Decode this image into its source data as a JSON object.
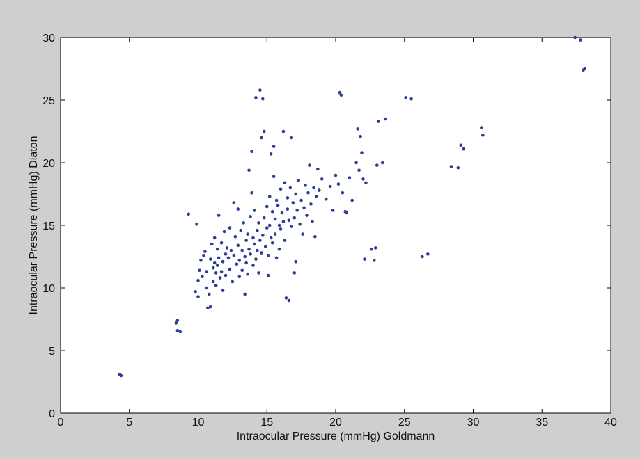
{
  "chart_data": {
    "type": "scatter",
    "title": "",
    "xlabel": "Intraocular Pressure (mmHg) Goldmann",
    "ylabel": "Intraocular Pressure (mmHg) Diaton",
    "xlim": [
      0,
      40
    ],
    "ylim": [
      0,
      30
    ],
    "xticks": [
      0,
      5,
      10,
      15,
      20,
      25,
      30,
      35,
      40
    ],
    "yticks": [
      0,
      5,
      10,
      15,
      20,
      25,
      30
    ],
    "grid": false,
    "legend": "none",
    "colors": {
      "figure_background": "#cfcfcf",
      "axes_background": "#ffffff",
      "marker": "#2b3f9a"
    },
    "series": [
      {
        "points": [
          [
            4.3,
            3.1
          ],
          [
            4.4,
            3.0
          ],
          [
            8.4,
            7.2
          ],
          [
            8.5,
            7.4
          ],
          [
            8.5,
            6.6
          ],
          [
            8.7,
            6.5
          ],
          [
            9.3,
            15.9
          ],
          [
            9.8,
            9.7
          ],
          [
            9.9,
            15.1
          ],
          [
            10.0,
            9.3
          ],
          [
            10.1,
            11.4
          ],
          [
            10.0,
            10.6
          ],
          [
            10.2,
            12.2
          ],
          [
            10.3,
            10.9
          ],
          [
            10.4,
            12.6
          ],
          [
            10.5,
            12.9
          ],
          [
            10.6,
            11.3
          ],
          [
            10.6,
            10.0
          ],
          [
            10.7,
            8.4
          ],
          [
            10.8,
            9.5
          ],
          [
            10.9,
            12.3
          ],
          [
            10.9,
            8.5
          ],
          [
            11.0,
            13.5
          ],
          [
            11.1,
            11.6
          ],
          [
            11.1,
            10.5
          ],
          [
            11.2,
            14.0
          ],
          [
            11.2,
            12.0
          ],
          [
            11.3,
            11.2
          ],
          [
            11.3,
            10.2
          ],
          [
            11.4,
            13.1
          ],
          [
            11.4,
            11.8
          ],
          [
            11.5,
            15.8
          ],
          [
            11.5,
            12.4
          ],
          [
            11.6,
            10.8
          ],
          [
            11.7,
            13.6
          ],
          [
            11.7,
            11.3
          ],
          [
            11.8,
            12.1
          ],
          [
            11.8,
            9.8
          ],
          [
            11.9,
            14.5
          ],
          [
            12.0,
            12.7
          ],
          [
            12.0,
            11.0
          ],
          [
            12.1,
            13.2
          ],
          [
            12.2,
            12.4
          ],
          [
            12.3,
            14.8
          ],
          [
            12.3,
            11.5
          ],
          [
            12.4,
            13.0
          ],
          [
            12.5,
            10.5
          ],
          [
            12.6,
            16.8
          ],
          [
            12.6,
            12.6
          ],
          [
            12.7,
            14.1
          ],
          [
            12.8,
            11.9
          ],
          [
            12.9,
            16.3
          ],
          [
            12.9,
            13.4
          ],
          [
            13.0,
            12.2
          ],
          [
            13.0,
            10.9
          ],
          [
            13.1,
            14.6
          ],
          [
            13.2,
            13.0
          ],
          [
            13.2,
            11.4
          ],
          [
            13.3,
            15.2
          ],
          [
            13.4,
            12.5
          ],
          [
            13.4,
            9.5
          ],
          [
            13.5,
            13.8
          ],
          [
            13.5,
            12.0
          ],
          [
            13.6,
            14.3
          ],
          [
            13.6,
            11.1
          ],
          [
            13.7,
            19.4
          ],
          [
            13.7,
            13.1
          ],
          [
            13.8,
            15.7
          ],
          [
            13.8,
            12.7
          ],
          [
            13.9,
            20.9
          ],
          [
            13.9,
            17.6
          ],
          [
            14.0,
            14.0
          ],
          [
            14.0,
            11.8
          ],
          [
            14.1,
            13.5
          ],
          [
            14.1,
            16.2
          ],
          [
            14.2,
            12.3
          ],
          [
            14.2,
            25.2
          ],
          [
            14.3,
            14.6
          ],
          [
            14.3,
            13.0
          ],
          [
            14.4,
            15.2
          ],
          [
            14.4,
            11.2
          ],
          [
            14.5,
            25.8
          ],
          [
            14.5,
            13.8
          ],
          [
            14.6,
            22.0
          ],
          [
            14.6,
            12.8
          ],
          [
            14.7,
            25.1
          ],
          [
            14.7,
            14.2
          ],
          [
            14.8,
            22.5
          ],
          [
            14.8,
            15.6
          ],
          [
            14.9,
            13.3
          ],
          [
            15.0,
            16.5
          ],
          [
            15.0,
            14.8
          ],
          [
            15.1,
            12.6
          ],
          [
            15.1,
            11.0
          ],
          [
            15.2,
            17.3
          ],
          [
            15.2,
            15.0
          ],
          [
            15.3,
            14.0
          ],
          [
            15.3,
            20.7
          ],
          [
            15.4,
            16.1
          ],
          [
            15.4,
            13.6
          ],
          [
            15.5,
            21.3
          ],
          [
            15.5,
            18.9
          ],
          [
            15.6,
            15.5
          ],
          [
            15.6,
            14.3
          ],
          [
            15.7,
            17.0
          ],
          [
            15.7,
            12.4
          ],
          [
            15.8,
            16.6
          ],
          [
            15.9,
            15.0
          ],
          [
            15.9,
            13.1
          ],
          [
            16.0,
            17.9
          ],
          [
            16.0,
            14.7
          ],
          [
            16.1,
            16.0
          ],
          [
            16.2,
            22.5
          ],
          [
            16.2,
            15.3
          ],
          [
            16.3,
            18.4
          ],
          [
            16.3,
            13.8
          ],
          [
            16.4,
            9.2
          ],
          [
            16.5,
            17.2
          ],
          [
            16.5,
            16.3
          ],
          [
            16.6,
            9.0
          ],
          [
            16.6,
            15.4
          ],
          [
            16.7,
            18.0
          ],
          [
            16.8,
            14.9
          ],
          [
            16.8,
            22.0
          ],
          [
            16.9,
            16.8
          ],
          [
            17.0,
            15.6
          ],
          [
            17.0,
            11.2
          ],
          [
            17.1,
            17.5
          ],
          [
            17.1,
            12.1
          ],
          [
            17.2,
            16.2
          ],
          [
            17.3,
            18.6
          ],
          [
            17.4,
            15.1
          ],
          [
            17.5,
            17.0
          ],
          [
            17.6,
            14.3
          ],
          [
            17.7,
            16.4
          ],
          [
            17.8,
            18.2
          ],
          [
            17.9,
            15.8
          ],
          [
            18.0,
            17.6
          ],
          [
            18.1,
            19.8
          ],
          [
            18.2,
            16.7
          ],
          [
            18.3,
            15.3
          ],
          [
            18.4,
            18.0
          ],
          [
            18.5,
            14.1
          ],
          [
            18.6,
            17.3
          ],
          [
            18.7,
            19.5
          ],
          [
            18.8,
            17.8
          ],
          [
            19.0,
            18.7
          ],
          [
            19.3,
            17.1
          ],
          [
            19.6,
            18.1
          ],
          [
            19.8,
            16.2
          ],
          [
            20.0,
            19.0
          ],
          [
            20.2,
            18.3
          ],
          [
            20.3,
            25.6
          ],
          [
            20.4,
            25.4
          ],
          [
            20.5,
            17.6
          ],
          [
            20.7,
            16.1
          ],
          [
            20.8,
            16.0
          ],
          [
            21.0,
            18.8
          ],
          [
            21.2,
            17.0
          ],
          [
            21.5,
            20.0
          ],
          [
            21.6,
            22.7
          ],
          [
            21.7,
            19.4
          ],
          [
            21.8,
            22.1
          ],
          [
            21.9,
            20.8
          ],
          [
            22.0,
            18.7
          ],
          [
            22.1,
            12.3
          ],
          [
            22.2,
            18.4
          ],
          [
            22.6,
            13.1
          ],
          [
            22.8,
            12.2
          ],
          [
            22.9,
            13.2
          ],
          [
            23.0,
            19.8
          ],
          [
            23.1,
            23.3
          ],
          [
            23.4,
            20.0
          ],
          [
            23.6,
            23.5
          ],
          [
            25.1,
            25.2
          ],
          [
            25.5,
            25.1
          ],
          [
            26.3,
            12.5
          ],
          [
            26.7,
            12.7
          ],
          [
            28.4,
            19.7
          ],
          [
            28.9,
            19.6
          ],
          [
            29.1,
            21.4
          ],
          [
            29.3,
            21.1
          ],
          [
            30.6,
            22.8
          ],
          [
            30.7,
            22.2
          ],
          [
            37.4,
            30.0
          ],
          [
            37.8,
            29.8
          ],
          [
            38.0,
            27.4
          ],
          [
            38.1,
            27.5
          ]
        ]
      }
    ]
  }
}
